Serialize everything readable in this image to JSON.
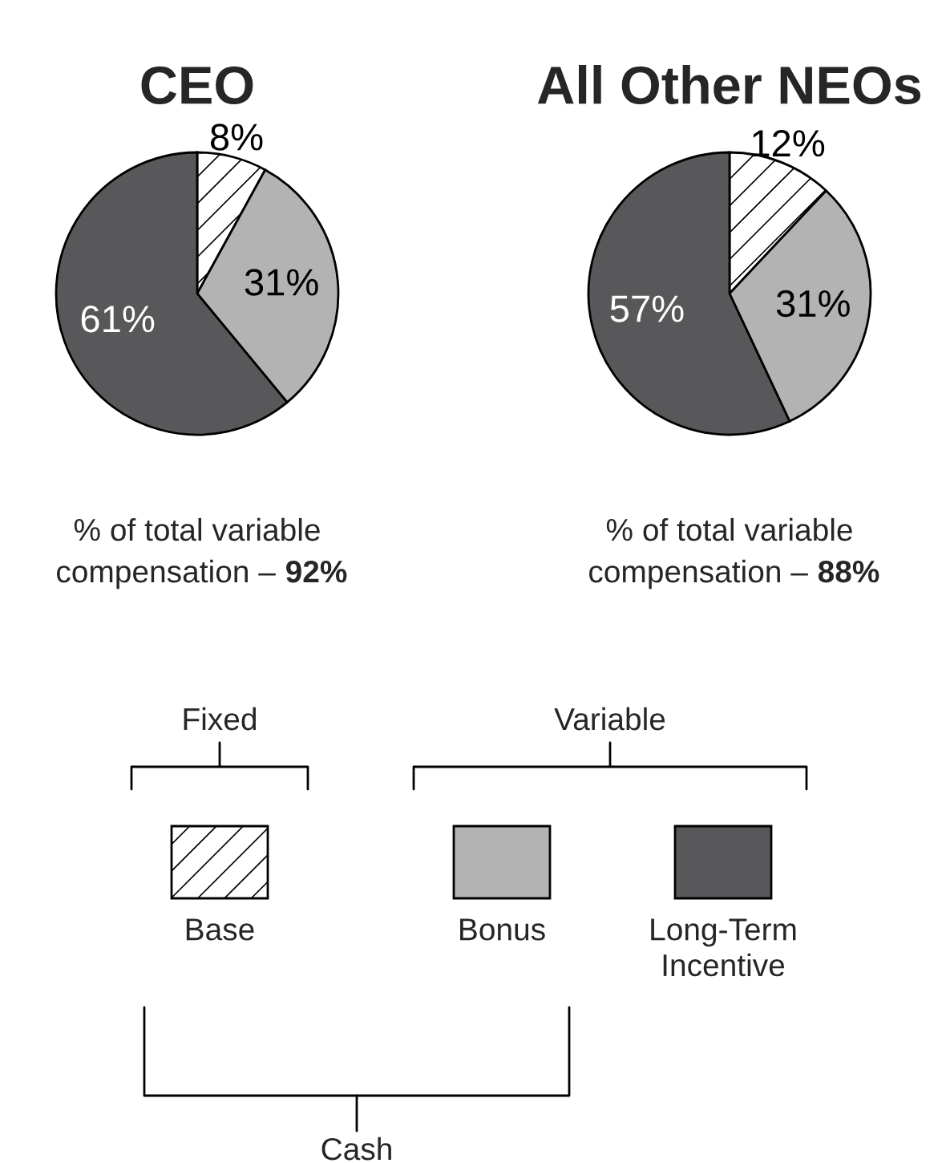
{
  "chart_data": [
    {
      "type": "pie",
      "title": "CEO",
      "categories": [
        "Base",
        "Bonus",
        "Long-Term Incentive"
      ],
      "values": [
        8,
        31,
        61
      ],
      "colors": [
        "#ffffff",
        "#b3b3b3",
        "#58585a"
      ],
      "value_labels": [
        "8%",
        "31%",
        "61%"
      ],
      "legend": "bottom",
      "annotations": [
        "% of total variable compensation – 92%"
      ]
    },
    {
      "type": "pie",
      "title": "All Other NEOs",
      "categories": [
        null,
        null,
        null
      ],
      "values": [
        12,
        31,
        57
      ],
      "colors": [
        "#ffffff",
        "#b3b3b3",
        "#58585a"
      ],
      "value_labels": [
        "12%",
        "31%",
        "57%"
      ],
      "annotations": [
        "% of total variable compensation – 88%"
      ]
    },
    {
      "type": "other",
      "annotations": [
        "Fixed",
        "Variable",
        "Cash"
      ]
    }
  ]
}
